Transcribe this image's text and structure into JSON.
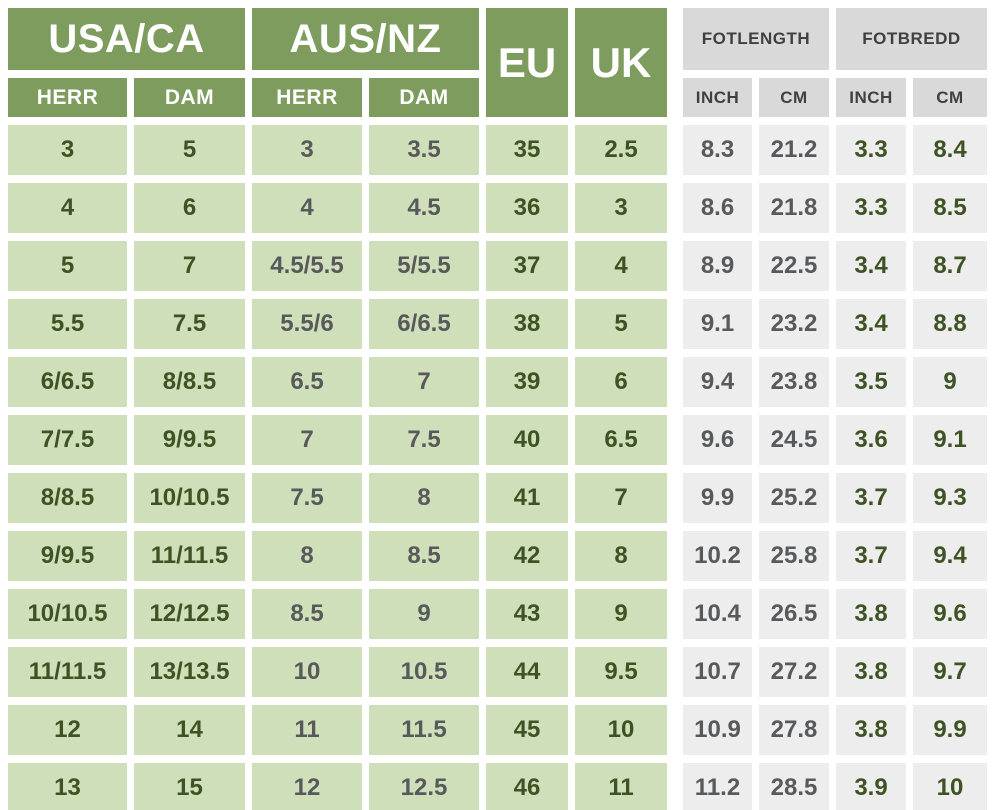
{
  "chart_data": {
    "type": "table",
    "header_groups": [
      {
        "id": "usa-ca",
        "label": "USA/CA",
        "subcolumns": [
          "HERR",
          "DAM"
        ]
      },
      {
        "id": "aus-nz",
        "label": "AUS/NZ",
        "subcolumns": [
          "HERR",
          "DAM"
        ]
      },
      {
        "id": "eu",
        "label": "EU",
        "subcolumns": []
      },
      {
        "id": "uk",
        "label": "UK",
        "subcolumns": []
      },
      {
        "id": "fotlength",
        "label": "FOTLENGTH",
        "subcolumns": [
          "INCH",
          "CM"
        ]
      },
      {
        "id": "fotbredd",
        "label": "FOTBREDD",
        "subcolumns": [
          "INCH",
          "CM"
        ]
      }
    ],
    "column_order": [
      "usa-herr",
      "usa-dam",
      "aus-herr",
      "aus-dam",
      "eu",
      "uk",
      "fotlength-inch",
      "fotlength-cm",
      "fotbredd-inch",
      "fotbredd-cm"
    ],
    "rows": [
      [
        "3",
        "5",
        "3",
        "3.5",
        "35",
        "2.5",
        "8.3",
        "21.2",
        "3.3",
        "8.4"
      ],
      [
        "4",
        "6",
        "4",
        "4.5",
        "36",
        "3",
        "8.6",
        "21.8",
        "3.3",
        "8.5"
      ],
      [
        "5",
        "7",
        "4.5/5.5",
        "5/5.5",
        "37",
        "4",
        "8.9",
        "22.5",
        "3.4",
        "8.7"
      ],
      [
        "5.5",
        "7.5",
        "5.5/6",
        "6/6.5",
        "38",
        "5",
        "9.1",
        "23.2",
        "3.4",
        "8.8"
      ],
      [
        "6/6.5",
        "8/8.5",
        "6.5",
        "7",
        "39",
        "6",
        "9.4",
        "23.8",
        "3.5",
        "9"
      ],
      [
        "7/7.5",
        "9/9.5",
        "7",
        "7.5",
        "40",
        "6.5",
        "9.6",
        "24.5",
        "3.6",
        "9.1"
      ],
      [
        "8/8.5",
        "10/10.5",
        "7.5",
        "8",
        "41",
        "7",
        "9.9",
        "25.2",
        "3.7",
        "9.3"
      ],
      [
        "9/9.5",
        "11/11.5",
        "8",
        "8.5",
        "42",
        "8",
        "10.2",
        "25.8",
        "3.7",
        "9.4"
      ],
      [
        "10/10.5",
        "12/12.5",
        "8.5",
        "9",
        "43",
        "9",
        "10.4",
        "26.5",
        "3.8",
        "9.6"
      ],
      [
        "11/11.5",
        "13/13.5",
        "10",
        "10.5",
        "44",
        "9.5",
        "10.7",
        "27.2",
        "3.8",
        "9.7"
      ],
      [
        "12",
        "14",
        "11",
        "11.5",
        "45",
        "10",
        "10.9",
        "27.8",
        "3.8",
        "9.9"
      ],
      [
        "13",
        "15",
        "12",
        "12.5",
        "46",
        "11",
        "11.2",
        "28.5",
        "3.9",
        "10"
      ]
    ]
  },
  "colors": {
    "header_green": "#7d9c5e",
    "cell_green": "#cfdfba",
    "header_gray": "#d9d9d9",
    "cell_gray": "#ededed",
    "text_white": "#ffffff",
    "text_green": "#3e5323",
    "text_gray": "#58595b",
    "header_text_dark": "#404040"
  }
}
